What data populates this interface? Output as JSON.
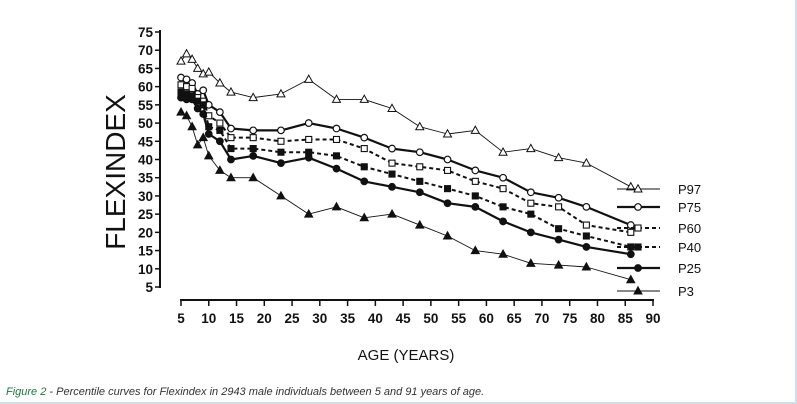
{
  "chart_data": {
    "type": "line",
    "title": "",
    "ylabel": "FLEXINDEX",
    "xlabel": "AGE (YEARS)",
    "xlim": [
      5,
      90
    ],
    "ylim": [
      5,
      75
    ],
    "xticks": [
      "5",
      "10",
      "15",
      "20",
      "25",
      "30",
      "35",
      "40",
      "45",
      "50",
      "55",
      "60",
      "65",
      "70",
      "75",
      "80",
      "85",
      "90"
    ],
    "yticks": [
      "5",
      "10",
      "15",
      "20",
      "25",
      "30",
      "35",
      "40",
      "45",
      "50",
      "55",
      "60",
      "65",
      "70",
      "75"
    ],
    "legend_position": "right",
    "series": [
      {
        "name": "P97",
        "marker": "triangle-open",
        "line": "thin-solid",
        "x": [
          5,
          6,
          7,
          8,
          9,
          10,
          12,
          14,
          18,
          23,
          28,
          33,
          38,
          43,
          48,
          53,
          58,
          63,
          68,
          73,
          78,
          86
        ],
        "y": [
          67,
          69,
          67.5,
          65,
          63.5,
          64,
          61,
          58.5,
          57,
          58,
          62,
          56.5,
          56.5,
          54,
          49,
          47,
          48,
          42,
          43,
          40.5,
          39,
          32.5
        ]
      },
      {
        "name": "P75",
        "marker": "circle-open",
        "line": "thick-solid",
        "x": [
          5,
          6,
          7,
          8,
          9,
          10,
          12,
          14,
          18,
          23,
          28,
          33,
          38,
          43,
          48,
          53,
          58,
          63,
          68,
          73,
          78,
          86
        ],
        "y": [
          62.5,
          62,
          61,
          58,
          59,
          55,
          53,
          48.5,
          48,
          48,
          50,
          48.5,
          46,
          43,
          42,
          40,
          37,
          35,
          31,
          29.5,
          27,
          22
        ]
      },
      {
        "name": "P60",
        "marker": "square-open",
        "line": "dashed",
        "x": [
          5,
          6,
          7,
          8,
          9,
          10,
          12,
          14,
          18,
          23,
          28,
          33,
          38,
          43,
          48,
          53,
          58,
          63,
          68,
          73,
          78,
          86
        ],
        "y": [
          60.5,
          60,
          59.5,
          57,
          56,
          52,
          50,
          46,
          46,
          45,
          45.5,
          45.5,
          43,
          39,
          38,
          37,
          34,
          32,
          28,
          27,
          22,
          20
        ]
      },
      {
        "name": "P40",
        "marker": "square-filled",
        "line": "dashed",
        "x": [
          5,
          6,
          7,
          8,
          9,
          10,
          12,
          14,
          18,
          23,
          28,
          33,
          38,
          43,
          48,
          53,
          58,
          63,
          68,
          73,
          78,
          86
        ],
        "y": [
          58.5,
          58,
          57.5,
          56,
          55,
          49,
          48,
          43,
          43,
          42,
          42,
          41,
          38,
          36,
          34,
          32,
          30,
          27,
          25,
          21,
          19,
          16
        ]
      },
      {
        "name": "P25",
        "marker": "circle-filled",
        "line": "thick-solid",
        "x": [
          5,
          6,
          7,
          8,
          9,
          10,
          12,
          14,
          18,
          23,
          28,
          33,
          38,
          43,
          48,
          53,
          58,
          63,
          68,
          73,
          78,
          86
        ],
        "y": [
          57,
          56.5,
          56.5,
          54,
          52.5,
          47,
          45,
          40,
          41,
          39,
          40.5,
          37.5,
          34,
          32.5,
          31,
          28,
          27,
          23,
          20,
          18,
          16,
          14
        ]
      },
      {
        "name": "P3",
        "marker": "triangle-filled",
        "line": "thin-solid",
        "x": [
          5,
          6,
          7,
          8,
          9,
          10,
          12,
          14,
          18,
          23,
          28,
          33,
          38,
          43,
          48,
          53,
          58,
          63,
          68,
          73,
          78,
          86
        ],
        "y": [
          53,
          52,
          49,
          44,
          46,
          41,
          37,
          35,
          35,
          30,
          25,
          27,
          24,
          25,
          22,
          19,
          15,
          14,
          11.5,
          11,
          10.5,
          7
        ]
      }
    ]
  },
  "caption": {
    "label": "Figure 2",
    "text": " - Percentile curves for Flexindex in 2943 male individuals between 5 and 91 years of age."
  },
  "colors": {
    "caption_label": "#1a7a3c",
    "frame": "#d4dee9",
    "ink": "#111111"
  }
}
